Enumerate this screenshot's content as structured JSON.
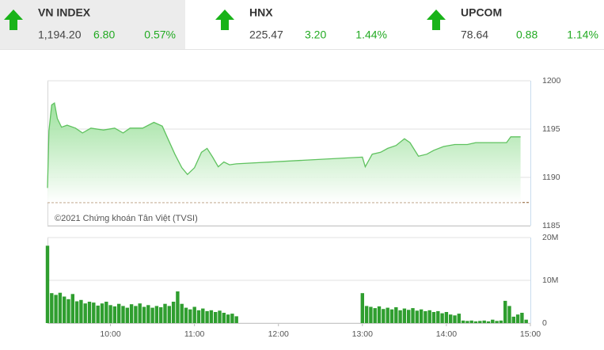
{
  "header": {
    "indices": [
      {
        "name": "VN INDEX",
        "value": "1,194.20",
        "change": "6.80",
        "percent": "0.57%"
      },
      {
        "name": "HNX",
        "value": "225.47",
        "change": "3.20",
        "percent": "1.44%"
      },
      {
        "name": "UPCOM",
        "value": "78.64",
        "change": "0.88",
        "percent": "1.14%"
      }
    ]
  },
  "chart_data": [
    {
      "type": "line",
      "annotation": "©2021 Chứng khoán Tân Việt (TVSI)",
      "color": "#5fc25f",
      "xlim": [
        555,
        900
      ],
      "ylim": [
        1185,
        1200
      ],
      "yticks": [
        1200,
        1195,
        1190,
        1185
      ],
      "grid": true,
      "reference_line": 1187.4,
      "x": [
        555,
        556,
        558,
        560,
        562,
        565,
        569,
        575,
        580,
        586,
        595,
        603,
        609,
        614,
        623,
        631,
        637,
        641,
        646,
        651,
        655,
        660,
        665,
        669,
        673,
        677,
        681,
        685,
        690,
        780,
        782,
        787,
        793,
        798,
        804,
        810,
        814,
        820,
        826,
        831,
        838,
        846,
        855,
        861,
        866,
        872,
        883,
        886,
        893
      ],
      "values": [
        1188.9,
        1194.8,
        1197.5,
        1197.7,
        1196.1,
        1195.2,
        1195.4,
        1195.1,
        1194.6,
        1195.1,
        1194.9,
        1195.1,
        1194.6,
        1195.1,
        1195.1,
        1195.7,
        1195.3,
        1194.0,
        1192.4,
        1191.0,
        1190.3,
        1191.0,
        1192.6,
        1193.0,
        1192.1,
        1191.1,
        1191.6,
        1191.3,
        1191.4,
        1192.1,
        1191.1,
        1192.4,
        1192.6,
        1193.0,
        1193.3,
        1194.0,
        1193.6,
        1192.2,
        1192.4,
        1192.8,
        1193.2,
        1193.4,
        1193.4,
        1193.6,
        1193.6,
        1193.6,
        1193.6,
        1194.2,
        1194.2
      ]
    },
    {
      "type": "bar",
      "color": "#2f9e2f",
      "xlim": [
        555,
        900
      ],
      "ylim": [
        0,
        20
      ],
      "yticks": [
        {
          "value": 20,
          "label": "20M"
        },
        {
          "value": 10,
          "label": "10M"
        },
        0
      ],
      "grid": true,
      "xticks": [
        {
          "value": 600,
          "label": "10:00"
        },
        {
          "value": 660,
          "label": "11:00"
        },
        {
          "value": 720,
          "label": "12:00"
        },
        {
          "value": 780,
          "label": "13:00"
        },
        {
          "value": 840,
          "label": "14:00"
        },
        {
          "value": 900,
          "label": "15:00"
        }
      ],
      "x": [
        555,
        558,
        561,
        564,
        567,
        570,
        573,
        576,
        579,
        582,
        585,
        588,
        591,
        594,
        597,
        600,
        603,
        606,
        609,
        612,
        615,
        618,
        621,
        624,
        627,
        630,
        633,
        636,
        639,
        642,
        645,
        648,
        651,
        654,
        657,
        660,
        663,
        666,
        669,
        672,
        675,
        678,
        681,
        684,
        687,
        690,
        780,
        783,
        786,
        789,
        792,
        795,
        798,
        801,
        804,
        807,
        810,
        813,
        816,
        819,
        822,
        825,
        828,
        831,
        834,
        837,
        840,
        843,
        846,
        849,
        852,
        855,
        858,
        861,
        864,
        867,
        870,
        873,
        876,
        879,
        882,
        885,
        888,
        891,
        894,
        897
      ],
      "values": [
        18.1,
        7.0,
        6.6,
        7.1,
        6.2,
        5.6,
        6.8,
        5.1,
        5.4,
        4.6,
        5.0,
        4.8,
        4.1,
        4.6,
        5.0,
        4.2,
        3.9,
        4.5,
        4.0,
        3.6,
        4.4,
        4.0,
        4.6,
        3.8,
        4.2,
        3.6,
        4.0,
        3.7,
        4.5,
        4.0,
        5.0,
        7.4,
        4.5,
        3.6,
        3.2,
        3.8,
        3.0,
        3.4,
        2.8,
        3.0,
        2.6,
        2.9,
        2.4,
        2.0,
        2.2,
        1.6,
        7.0,
        4.0,
        3.8,
        3.5,
        3.9,
        3.3,
        3.6,
        3.2,
        3.7,
        3.0,
        3.4,
        3.1,
        3.5,
        2.9,
        3.2,
        2.8,
        3.0,
        2.6,
        2.8,
        2.3,
        2.6,
        2.0,
        1.8,
        2.2,
        0.6,
        0.5,
        0.6,
        0.4,
        0.5,
        0.6,
        0.4,
        0.8,
        0.5,
        0.6,
        5.2,
        4.0,
        1.5,
        2.0,
        2.4,
        0.8
      ]
    }
  ]
}
